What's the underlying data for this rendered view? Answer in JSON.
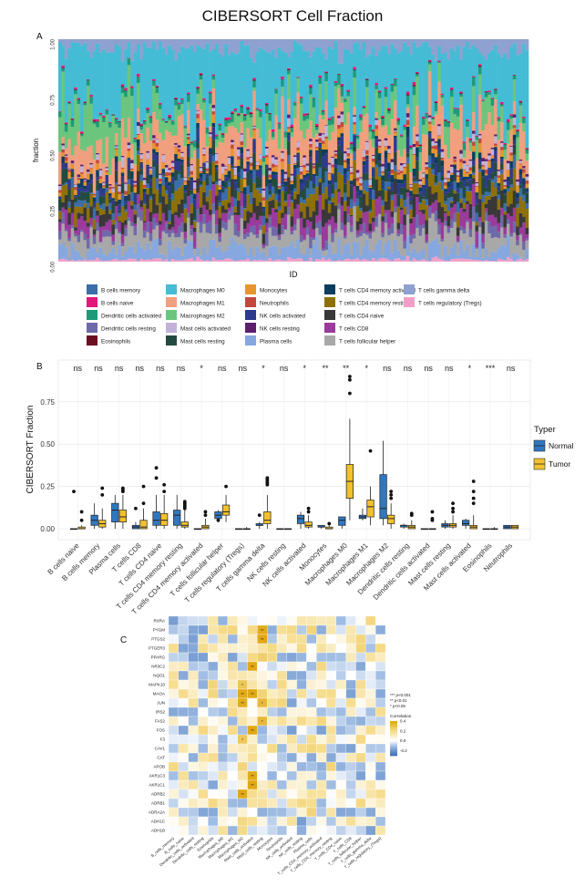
{
  "title": "CIBERSORT Cell Fraction",
  "chart_data": [
    {
      "panel": "A",
      "type": "bar",
      "stacked": true,
      "xlabel": "ID",
      "ylabel": "fraction",
      "ylim": [
        0,
        1
      ],
      "yticks": [
        "0.00",
        "0.25",
        "0.50",
        "0.75",
        "1.00"
      ],
      "n_samples": 150,
      "legend": [
        {
          "name": "B cells memory",
          "color": "#3a6ea8"
        },
        {
          "name": "B cells naive",
          "color": "#e0197a"
        },
        {
          "name": "Dendritic cells activated",
          "color": "#1e9a78"
        },
        {
          "name": "Dendritic cells resting",
          "color": "#6e6aa9"
        },
        {
          "name": "Eosinophils",
          "color": "#6a0e22"
        },
        {
          "name": "Macrophages M0",
          "color": "#45bcd5"
        },
        {
          "name": "Macrophages M1",
          "color": "#f0a07e"
        },
        {
          "name": "Macrophages M2",
          "color": "#6cc57c"
        },
        {
          "name": "Mast cells activated",
          "color": "#c3b2d8"
        },
        {
          "name": "Mast cells resting",
          "color": "#234a40"
        },
        {
          "name": "Monocytes",
          "color": "#e6952f"
        },
        {
          "name": "Neutrophils",
          "color": "#c4473c"
        },
        {
          "name": "NK cells activated",
          "color": "#2e3a8c"
        },
        {
          "name": "NK cells resting",
          "color": "#5e1f6f"
        },
        {
          "name": "Plasma cells",
          "color": "#86a7df"
        },
        {
          "name": "T cells CD4 memory activated",
          "color": "#0d3d5e"
        },
        {
          "name": "T cells CD4 memory resting",
          "color": "#8e7008"
        },
        {
          "name": "T cells CD4 naive",
          "color": "#383838"
        },
        {
          "name": "T cells CD8",
          "color": "#9a3a9c"
        },
        {
          "name": "T cells follicular helper",
          "color": "#a8a8a8"
        },
        {
          "name": "T cells gamma delta",
          "color": "#8fa1d0"
        },
        {
          "name": "T cells regulatory (Tregs)",
          "color": "#f0a0c8"
        }
      ]
    },
    {
      "panel": "B",
      "type": "box",
      "ylabel": "CIBERSORT Fraction",
      "ylim": [
        0,
        0.9
      ],
      "yticks": [
        "0.00",
        "0.25",
        "0.50",
        "0.75"
      ],
      "legend_title": "Typer",
      "series": [
        {
          "name": "Normal",
          "color": "#2f78c0"
        },
        {
          "name": "Tumor",
          "color": "#f2c12e"
        }
      ],
      "categories": [
        {
          "name": "B cells naive",
          "sig": "ns",
          "normal": [
            0,
            0,
            0,
            0,
            0
          ],
          "tumor": [
            0,
            0,
            0,
            0.01,
            0.02
          ],
          "outN": [
            0.22
          ],
          "outT": [
            0.1,
            0.05
          ]
        },
        {
          "name": "B cells memory",
          "sig": "ns",
          "normal": [
            0,
            0.02,
            0.05,
            0.08,
            0.15
          ],
          "tumor": [
            0,
            0.01,
            0.03,
            0.05,
            0.12
          ],
          "outN": [],
          "outT": [
            0.24,
            0.2
          ]
        },
        {
          "name": "Plasma cells",
          "sig": "ns",
          "normal": [
            0,
            0.04,
            0.11,
            0.15,
            0.2
          ],
          "tumor": [
            0,
            0.04,
            0.07,
            0.11,
            0.2
          ],
          "outN": [],
          "outT": [
            0.24,
            0.23,
            0.22
          ]
        },
        {
          "name": "T cells CD8",
          "sig": "ns",
          "normal": [
            0,
            0,
            0.01,
            0.02,
            0.04
          ],
          "tumor": [
            0,
            0,
            0.01,
            0.05,
            0.12
          ],
          "outN": [
            0.12
          ],
          "outT": [
            0.25,
            0.15
          ]
        },
        {
          "name": "T cells CD4 naive",
          "sig": "ns",
          "normal": [
            0,
            0.02,
            0.05,
            0.1,
            0.2
          ],
          "tumor": [
            0,
            0.02,
            0.05,
            0.09,
            0.2
          ],
          "outN": [
            0.36,
            0.3
          ],
          "outT": [
            0.26,
            0.22
          ]
        },
        {
          "name": "T cells CD4 memory resting",
          "sig": "ns",
          "normal": [
            0,
            0.02,
            0.08,
            0.11,
            0.2
          ],
          "tumor": [
            0,
            0.01,
            0.02,
            0.04,
            0.12
          ],
          "outN": [],
          "outT": [
            0.16,
            0.15,
            0.14,
            0.13,
            0.12
          ]
        },
        {
          "name": "T cells CD4 memory activated",
          "sig": "*",
          "normal": [
            0,
            0,
            0,
            0,
            0
          ],
          "tumor": [
            0,
            0,
            0.01,
            0.02,
            0.06
          ],
          "outN": [],
          "outT": [
            0.1,
            0.08
          ]
        },
        {
          "name": "T cells follicular helper",
          "sig": "ns",
          "normal": [
            0.04,
            0.06,
            0.08,
            0.1,
            0.11
          ],
          "tumor": [
            0.04,
            0.08,
            0.1,
            0.14,
            0.2
          ],
          "outN": [
            0.05
          ],
          "outT": [
            0.25
          ]
        },
        {
          "name": "T cells regulatory (Tregs)",
          "sig": "ns",
          "normal": [
            0,
            0,
            0,
            0,
            0
          ],
          "tumor": [
            0,
            0,
            0,
            0,
            0.01
          ],
          "outN": [],
          "outT": []
        },
        {
          "name": "T cells gamma delta",
          "sig": "*",
          "normal": [
            0,
            0.02,
            0.02,
            0.03,
            0.04
          ],
          "tumor": [
            0,
            0.03,
            0.05,
            0.1,
            0.2
          ],
          "outN": [
            0.08
          ],
          "outT": [
            0.3,
            0.29,
            0.28,
            0.27,
            0.26
          ]
        },
        {
          "name": "NK cells resting",
          "sig": "ns",
          "normal": [
            0,
            0,
            0,
            0,
            0
          ],
          "tumor": [
            0,
            0,
            0,
            0,
            0
          ],
          "outN": [],
          "outT": []
        },
        {
          "name": "NK cells activated",
          "sig": "*",
          "normal": [
            0,
            0.03,
            0.06,
            0.08,
            0.1
          ],
          "tumor": [
            0,
            0.01,
            0.02,
            0.04,
            0.08
          ],
          "outN": [],
          "outT": [
            0.12,
            0.1
          ]
        },
        {
          "name": "Monocytes",
          "sig": "**",
          "normal": [
            0,
            0.01,
            0.01,
            0.02,
            0.02
          ],
          "tumor": [
            0,
            0,
            0,
            0.01,
            0.02
          ],
          "outN": [],
          "outT": [
            0.03
          ]
        },
        {
          "name": "Macrophages M0",
          "sig": "**",
          "normal": [
            0,
            0.02,
            0.05,
            0.07,
            0.07
          ],
          "tumor": [
            0.05,
            0.18,
            0.28,
            0.38,
            0.65
          ],
          "outN": [],
          "outT": [
            0.9,
            0.88,
            0.8
          ]
        },
        {
          "name": "Macrophages M1",
          "sig": "*",
          "normal": [
            0.05,
            0.06,
            0.07,
            0.08,
            0.12
          ],
          "tumor": [
            0.02,
            0.07,
            0.13,
            0.17,
            0.25
          ],
          "outN": [],
          "outT": [
            0.46
          ]
        },
        {
          "name": "Macrophages M2",
          "sig": "ns",
          "normal": [
            0.02,
            0.06,
            0.12,
            0.32,
            0.52
          ],
          "tumor": [
            0,
            0.03,
            0.06,
            0.08,
            0.15
          ],
          "outN": [],
          "outT": [
            0.22,
            0.2,
            0.18
          ]
        },
        {
          "name": "Dendritic cells resting",
          "sig": "ns",
          "normal": [
            0,
            0.01,
            0.02,
            0.02,
            0.03
          ],
          "tumor": [
            0,
            0,
            0.01,
            0.02,
            0.05
          ],
          "outN": [],
          "outT": [
            0.09,
            0.08
          ]
        },
        {
          "name": "Dendritic cells activated",
          "sig": "ns",
          "normal": [
            0,
            0,
            0,
            0,
            0
          ],
          "tumor": [
            0,
            0,
            0,
            0,
            0
          ],
          "outN": [],
          "outT": [
            0.1,
            0.06,
            0.05
          ]
        },
        {
          "name": "Mast cells resting",
          "sig": "ns",
          "normal": [
            0,
            0.01,
            0.02,
            0.03,
            0.05
          ],
          "tumor": [
            0,
            0.01,
            0.02,
            0.03,
            0.08
          ],
          "outN": [],
          "outT": [
            0.15,
            0.12,
            0.1
          ]
        },
        {
          "name": "Mast cells activated",
          "sig": "*",
          "normal": [
            0,
            0.02,
            0.03,
            0.05,
            0.06
          ],
          "tumor": [
            0,
            0,
            0.01,
            0.02,
            0.08
          ],
          "outN": [],
          "outT": [
            0.28,
            0.22,
            0.18,
            0.15
          ]
        },
        {
          "name": "Eosinophils",
          "sig": "***",
          "normal": [
            0,
            0,
            0,
            0,
            0
          ],
          "tumor": [
            0,
            0,
            0,
            0,
            0.01
          ],
          "outN": [],
          "outT": []
        },
        {
          "name": "Neutrophils",
          "sig": "ns",
          "normal": [
            0,
            0,
            0.01,
            0.02,
            0.02
          ],
          "tumor": [
            0,
            0,
            0.01,
            0.02,
            0.02
          ],
          "outN": [],
          "outT": []
        }
      ]
    },
    {
      "panel": "C",
      "type": "heatmap",
      "rows": [
        "RXRA",
        "PYGM",
        "PTGS2",
        "PTGER3",
        "PPARG",
        "NR3C2",
        "NQO1",
        "MAPK10",
        "MAOA",
        "JUN",
        "IRS2",
        "FAS2",
        "FOS",
        "F3",
        "CAV1",
        "CAT",
        "APOB",
        "AKR1C3",
        "AKR1C1",
        "ADRB2",
        "ADRB1",
        "ADRA2A",
        "ADH1C",
        "ADH1B"
      ],
      "columns": [
        "B_cells_memory",
        "B_cells_naive",
        "Dendritic_cells_activated",
        "Dendritic_cells_resting",
        "Eosinophils",
        "Macrophages_M0",
        "Macrophages_M1",
        "Macrophages_M2",
        "Mast_cells_activated",
        "Mast_cells_resting",
        "Monocytes",
        "Neutrophils",
        "NK_cells_activated",
        "NK_cells_resting",
        "Plasma_cells",
        "T_cells_CD4_memory_activated",
        "T_cells_CD4_memory_resting",
        "T_cells_CD4_naive",
        "T_cells_CD8",
        "T_cells_follicular_helper",
        "T_cells_gamma_delta",
        "T_cells_regulatory_(Tregs)"
      ],
      "sig_legend": [
        "*** p<0.001",
        "** p<0.01",
        "* p<0.05"
      ],
      "colorbar_title": "Correlation",
      "colorbar_ticks": [
        "0.4",
        "0.2",
        "0.0",
        "-0.2"
      ],
      "scale": [
        -0.3,
        0.4
      ]
    }
  ]
}
